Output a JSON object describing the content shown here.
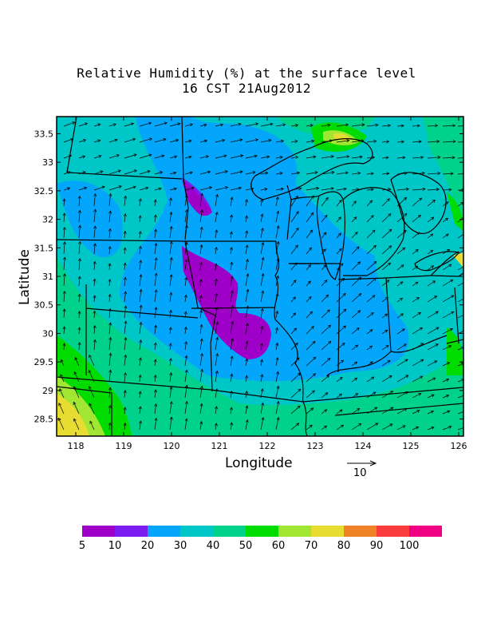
{
  "title_line1": "Relative Humidity (%) at the surface level",
  "title_line2": "16 CST 21Aug2012",
  "x_axis_label": "Longitude",
  "y_axis_label": "Latitude",
  "x_ticks": [
    "118",
    "119",
    "120",
    "121",
    "122",
    "123",
    "124",
    "125",
    "126"
  ],
  "y_ticks": [
    "33.5",
    "33",
    "32.5",
    "32",
    "31.5",
    "31",
    "30.5",
    "30",
    "29.5",
    "29",
    "28.5"
  ],
  "vector_reference": "10",
  "colorbar": {
    "labels": [
      "5",
      "10",
      "20",
      "30",
      "40",
      "50",
      "60",
      "70",
      "80",
      "90",
      "100"
    ],
    "colors": [
      "#9f00c8",
      "#7b1cf0",
      "#03a6fa",
      "#00c7c7",
      "#00d28b",
      "#00dc00",
      "#a1e632",
      "#e6dc32",
      "#f08228",
      "#fa3c3c",
      "#f00082"
    ]
  },
  "chart_data": {
    "type": "heatmap",
    "title": "Relative Humidity (%) at the surface level",
    "subtitle": "16 CST 21Aug2012",
    "xlabel": "Longitude",
    "ylabel": "Latitude",
    "xlim": [
      117.6,
      126.1
    ],
    "ylim": [
      28.2,
      33.8
    ],
    "levels": [
      5,
      10,
      20,
      30,
      40,
      50,
      60,
      70,
      80,
      90,
      100
    ],
    "regions": [
      {
        "name": "low humidity core",
        "range": "5-10",
        "lon": [
          120.3,
          122.0
        ],
        "lat": [
          29.6,
          31.5
        ]
      },
      {
        "name": "humid southwest corner",
        "range": "60-80",
        "lon": [
          117.6,
          119.0
        ],
        "lat": [
          28.2,
          29.0
        ]
      },
      {
        "name": "humid north",
        "range": "50-70",
        "lon": [
          123.0,
          124.2
        ],
        "lat": [
          33.1,
          33.8
        ]
      }
    ],
    "vector_reference_magnitude": 10
  }
}
